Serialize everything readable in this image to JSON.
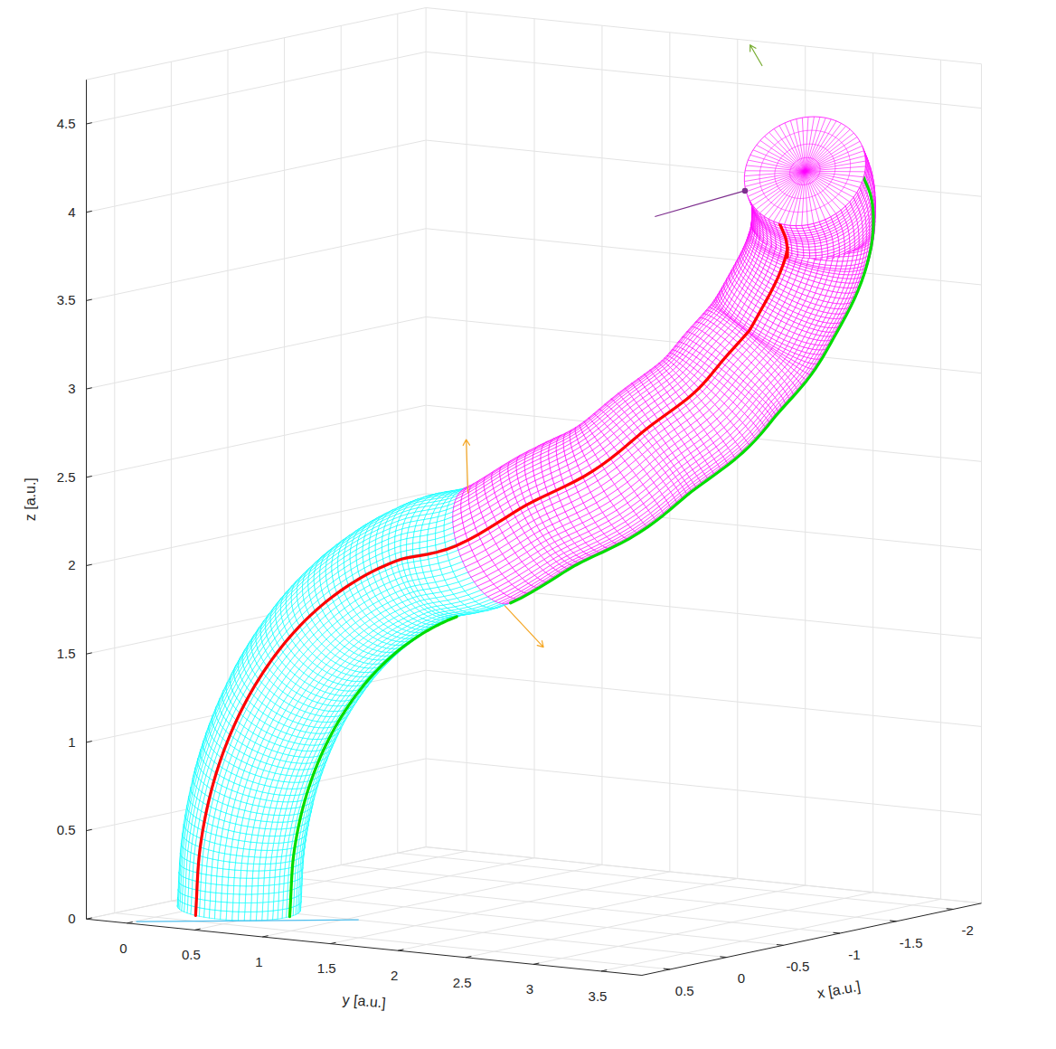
{
  "chart_data": {
    "type": "tube3d",
    "xlabel": "x [a.u.]",
    "ylabel": "y [a.u.]",
    "zlabel": "z [a.u.]",
    "xlim": [
      -2.25,
      0.75
    ],
    "ylim": [
      -0.3,
      3.8
    ],
    "zlim": [
      0,
      4.75
    ],
    "xticks": [
      -2,
      -1.5,
      -1,
      -0.5,
      0,
      0.5
    ],
    "yticks": [
      0,
      0.5,
      1,
      1.5,
      2,
      2.5,
      3,
      3.5
    ],
    "zticks": [
      0,
      0.5,
      1,
      1.5,
      2,
      2.5,
      3,
      3.5,
      4,
      4.5
    ],
    "grid": true,
    "radius": 0.35,
    "segments": [
      {
        "color": "#00ffff",
        "points": [
          [
            0,
            0.2,
            0
          ],
          [
            0,
            0.234,
            0.387
          ],
          [
            0,
            0.334,
            0.763
          ],
          [
            0,
            0.499,
            1.115
          ],
          [
            0,
            0.722,
            1.433
          ],
          [
            0,
            0.996,
            1.708
          ],
          [
            0,
            1.315,
            1.931
          ],
          [
            0,
            1.667,
            2.096
          ],
          [
            0,
            2.042,
            2.196
          ]
        ]
      },
      {
        "color": "#ff00ff",
        "points": [
          [
            0,
            2.042,
            2.196
          ],
          [
            -0.15,
            2.36,
            2.4
          ],
          [
            -0.3,
            2.671,
            2.573
          ],
          [
            -0.5,
            2.85,
            2.77
          ],
          [
            -0.7,
            3.033,
            2.96
          ],
          [
            -0.85,
            3.13,
            3.14
          ],
          [
            -1.0,
            3.225,
            3.322
          ],
          [
            -1.06,
            3.33,
            3.52
          ],
          [
            -1.1,
            3.427,
            3.713
          ],
          [
            -1.12,
            3.48,
            3.87
          ],
          [
            -1.1,
            3.522,
            4.012
          ],
          [
            -0.96,
            3.63,
            4.19
          ],
          [
            -0.8,
            3.709,
            4.333
          ]
        ]
      }
    ],
    "surface_lines": [
      {
        "color": "#ff0000",
        "angle": -44
      },
      {
        "color": "#00dd00",
        "angle": 56
      },
      {
        "color": "#0000ff",
        "angle": 170
      }
    ],
    "vectors": [
      {
        "color": "#f5a623",
        "marker": "arrow",
        "from": [
          0,
          1.89,
          2.481
        ],
        "to": [
          0,
          1.877,
          2.781
        ]
      },
      {
        "color": "#f5a623",
        "marker": "arrow",
        "from": [
          0,
          2.162,
          1.862
        ],
        "to": [
          0,
          2.447,
          1.65
        ]
      },
      {
        "color": "#77ac30",
        "marker": "arrow",
        "from": [
          -0.8,
          3.392,
          4.906
        ],
        "to": [
          -0.8,
          3.304,
          5.016
        ]
      },
      {
        "color": "#7e2f8e",
        "marker": "dot",
        "from": [
          -0.8,
          3.266,
          4.188
        ],
        "to": [
          -0.8,
          2.601,
          3.99
        ]
      },
      {
        "color": "#4dbeee",
        "marker": "none",
        "from": [
          0.68,
          0.009,
          0
        ],
        "to": [
          -0.004,
          1.08,
          0
        ]
      }
    ]
  }
}
